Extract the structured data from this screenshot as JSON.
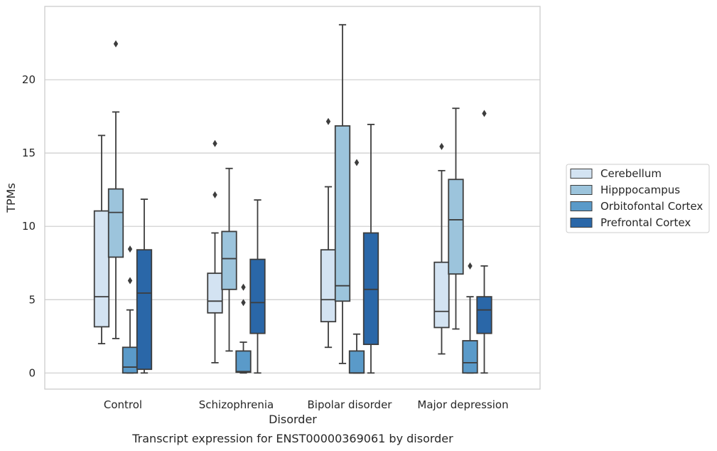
{
  "caption": "Transcript expression for ENST00000369061 by disorder",
  "chart_data": {
    "type": "box",
    "title": "",
    "xlabel": "Disorder",
    "ylabel": "TPMs",
    "ylim": [
      -1.1,
      25.0
    ],
    "yticks": [
      0,
      5,
      10,
      15,
      20
    ],
    "categories": [
      "Control",
      "Schizophrenia",
      "Bipolar disorder",
      "Major depression"
    ],
    "grid": "horizontal",
    "legend_position": "right",
    "series": [
      {
        "name": "Cerebellum",
        "color": "#d3e3f2",
        "boxes": [
          {
            "whislo": 2.0,
            "q1": 3.15,
            "med": 5.2,
            "q3": 11.05,
            "whishi": 16.2,
            "fliers": []
          },
          {
            "whislo": 0.7,
            "q1": 4.1,
            "med": 4.9,
            "q3": 6.8,
            "whishi": 9.55,
            "fliers": [
              12.15,
              15.65
            ]
          },
          {
            "whislo": 1.75,
            "q1": 3.5,
            "med": 5.0,
            "q3": 8.4,
            "whishi": 12.7,
            "fliers": [
              17.15
            ]
          },
          {
            "whislo": 1.3,
            "q1": 3.1,
            "med": 4.2,
            "q3": 7.55,
            "whishi": 13.8,
            "fliers": [
              15.45
            ]
          }
        ]
      },
      {
        "name": "Hipppocampus",
        "color": "#9cc4dc",
        "boxes": [
          {
            "whislo": 2.35,
            "q1": 7.9,
            "med": 10.95,
            "q3": 12.55,
            "whishi": 17.8,
            "fliers": [
              22.45
            ]
          },
          {
            "whislo": 1.5,
            "q1": 5.7,
            "med": 7.8,
            "q3": 9.65,
            "whishi": 13.95,
            "fliers": []
          },
          {
            "whislo": 0.65,
            "q1": 4.9,
            "med": 5.95,
            "q3": 16.85,
            "whishi": 23.75,
            "fliers": []
          },
          {
            "whislo": 3.0,
            "q1": 6.75,
            "med": 10.45,
            "q3": 13.2,
            "whishi": 18.05,
            "fliers": []
          }
        ]
      },
      {
        "name": "Orbitofontal Cortex",
        "color": "#5a9ac9",
        "boxes": [
          {
            "whislo": 0.0,
            "q1": 0.0,
            "med": 0.4,
            "q3": 1.75,
            "whishi": 4.3,
            "fliers": [
              6.3,
              8.45
            ]
          },
          {
            "whislo": 0.0,
            "q1": 0.05,
            "med": 0.1,
            "q3": 1.5,
            "whishi": 2.1,
            "fliers": [
              4.8,
              5.85
            ]
          },
          {
            "whislo": 0.0,
            "q1": 0.0,
            "med": 0.0,
            "q3": 1.5,
            "whishi": 2.65,
            "fliers": [
              14.35
            ]
          },
          {
            "whislo": 0.0,
            "q1": 0.0,
            "med": 0.7,
            "q3": 2.2,
            "whishi": 5.2,
            "fliers": [
              7.3
            ]
          }
        ]
      },
      {
        "name": "Prefrontal Cortex",
        "color": "#2a67a8",
        "boxes": [
          {
            "whislo": 0.0,
            "q1": 0.25,
            "med": 5.45,
            "q3": 8.4,
            "whishi": 11.85,
            "fliers": []
          },
          {
            "whislo": 0.0,
            "q1": 2.7,
            "med": 4.8,
            "q3": 7.75,
            "whishi": 11.8,
            "fliers": []
          },
          {
            "whislo": 0.0,
            "q1": 1.95,
            "med": 5.7,
            "q3": 9.55,
            "whishi": 16.95,
            "fliers": []
          },
          {
            "whislo": 0.0,
            "q1": 2.7,
            "med": 4.3,
            "q3": 5.2,
            "whishi": 7.3,
            "fliers": [
              17.7
            ]
          }
        ]
      }
    ]
  }
}
